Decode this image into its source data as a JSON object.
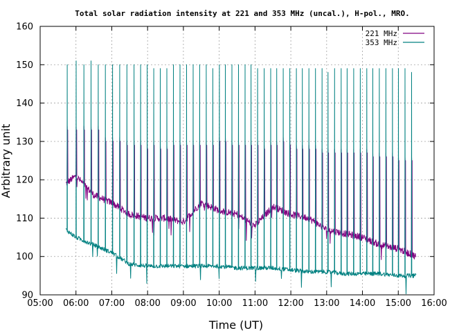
{
  "chart_data": {
    "type": "line",
    "title": "Total solar radiation intensity at 221 and 353 MHz (uncal.), H-pol., MRO.",
    "xlabel": "Time (UT)",
    "ylabel": "Arbitrary unit",
    "x_ticks": [
      "05:00",
      "06:00",
      "07:00",
      "08:00",
      "09:00",
      "10:00",
      "11:00",
      "12:00",
      "13:00",
      "14:00",
      "15:00",
      "16:00"
    ],
    "y_ticks": [
      "90",
      "100",
      "110",
      "120",
      "130",
      "140",
      "150",
      "160"
    ],
    "xlim": [
      "05:00",
      "16:00"
    ],
    "ylim": [
      90,
      160
    ],
    "grid": true,
    "legend_position": "top-right",
    "series": [
      {
        "name": "221 MHz",
        "color": "#800080",
        "baseline_x": [
          "05:43",
          "06:00",
          "06:30",
          "07:00",
          "07:30",
          "08:00",
          "08:30",
          "09:00",
          "09:30",
          "10:00",
          "10:30",
          "11:00",
          "11:30",
          "12:00",
          "12:30",
          "13:00",
          "13:30",
          "14:00",
          "14:30",
          "15:00",
          "15:30"
        ],
        "baseline_y": [
          119,
          121,
          116,
          114,
          111,
          110,
          110,
          109,
          114,
          112,
          111,
          108,
          113,
          111,
          110,
          107,
          106,
          105,
          103,
          102,
          100
        ],
        "spike_x": [
          "05:45",
          "06:00",
          "06:13",
          "06:25",
          "06:37",
          "06:49",
          "07:01",
          "07:13",
          "07:25",
          "07:37",
          "07:48",
          "07:59",
          "08:10",
          "08:21",
          "08:32",
          "08:43",
          "08:54",
          "09:05",
          "09:16",
          "09:27",
          "09:38",
          "09:49",
          "10:00",
          "10:10",
          "10:21",
          "10:32",
          "10:43",
          "10:53",
          "11:04",
          "11:15",
          "11:26",
          "11:36",
          "11:47",
          "11:58",
          "12:09",
          "12:19",
          "12:30",
          "12:41",
          "12:52",
          "13:02",
          "13:13",
          "13:24",
          "13:34",
          "13:45",
          "13:56",
          "14:07",
          "14:17",
          "14:28",
          "14:39",
          "14:50",
          "15:00",
          "15:11",
          "15:22"
        ],
        "spike_top": [
          134,
          134,
          134,
          134,
          134,
          131,
          131,
          131,
          130,
          130,
          130,
          129,
          130,
          129,
          129,
          130,
          130,
          130,
          130,
          130,
          130,
          130,
          131,
          131,
          130,
          130,
          130,
          130,
          130,
          129,
          130,
          130,
          131,
          130,
          129,
          129,
          129,
          129,
          128,
          128,
          128,
          128,
          128,
          128,
          128,
          128,
          127,
          127,
          127,
          127,
          126,
          126,
          126
        ]
      },
      {
        "name": "353 MHz",
        "color": "#008080",
        "baseline_x": [
          "05:43",
          "06:00",
          "06:30",
          "07:00",
          "07:30",
          "08:00",
          "08:30",
          "09:00",
          "09:30",
          "10:00",
          "10:30",
          "11:00",
          "11:30",
          "12:00",
          "12:30",
          "13:00",
          "13:30",
          "14:00",
          "14:30",
          "15:00",
          "15:30"
        ],
        "baseline_y": [
          107,
          105,
          103,
          101,
          98,
          97.5,
          97.5,
          97.5,
          97.5,
          97.5,
          97,
          97,
          97,
          96.5,
          96,
          96,
          95.5,
          95.5,
          95.5,
          95,
          95
        ],
        "spike_x": [
          "05:45",
          "06:00",
          "06:13",
          "06:25",
          "06:37",
          "06:49",
          "07:01",
          "07:13",
          "07:25",
          "07:37",
          "07:48",
          "07:59",
          "08:10",
          "08:21",
          "08:32",
          "08:43",
          "08:54",
          "09:05",
          "09:16",
          "09:27",
          "09:38",
          "09:49",
          "10:00",
          "10:10",
          "10:21",
          "10:32",
          "10:43",
          "10:53",
          "11:04",
          "11:15",
          "11:26",
          "11:36",
          "11:47",
          "11:58",
          "12:09",
          "12:19",
          "12:30",
          "12:41",
          "12:52",
          "13:02",
          "13:13",
          "13:24",
          "13:34",
          "13:45",
          "13:56",
          "14:07",
          "14:17",
          "14:28",
          "14:39",
          "14:50",
          "15:00",
          "15:11",
          "15:22"
        ],
        "spike_top": [
          150,
          151,
          150,
          151,
          150,
          150,
          150,
          150,
          150,
          150,
          150,
          150,
          149,
          149,
          149,
          150,
          150,
          150,
          150,
          150,
          150,
          149,
          150,
          150,
          150,
          150,
          150,
          150,
          149,
          149,
          149,
          149,
          149,
          149,
          149,
          149,
          149,
          149,
          149,
          148,
          149,
          149,
          149,
          149,
          149,
          149,
          149,
          149,
          149,
          149,
          149,
          149,
          148
        ]
      }
    ]
  }
}
